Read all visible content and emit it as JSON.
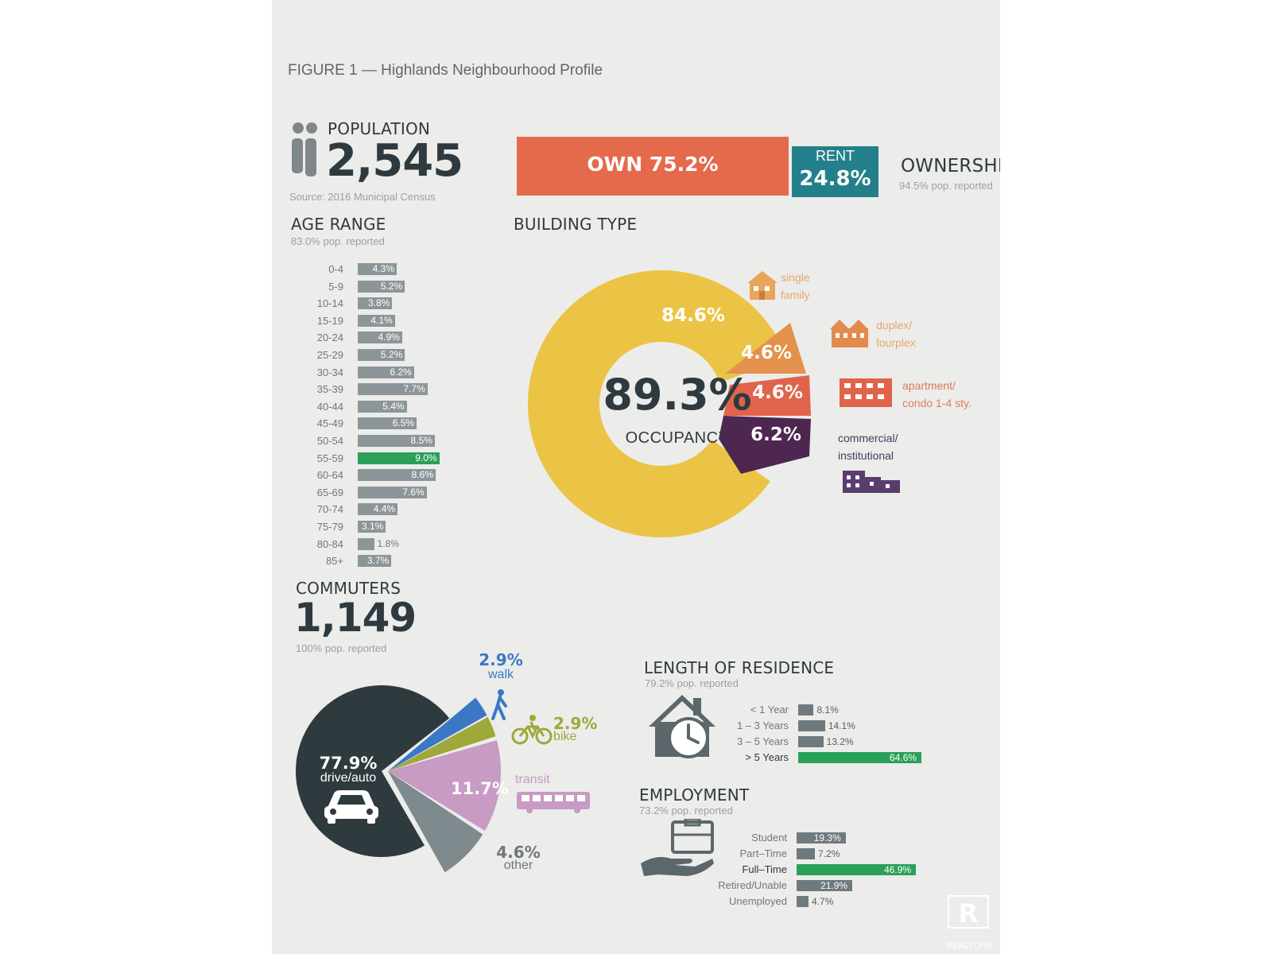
{
  "figure_title": "FIGURE 1 — Highlands Neighbourhood Profile",
  "population": {
    "label": "POPULATION",
    "value": "2,545",
    "source": "Source: 2016 Municipal Census"
  },
  "ownership": {
    "title": "OWNERSHIP",
    "reported": "94.5% pop. reported",
    "own_label": "OWN 75.2%",
    "rent_label": "RENT",
    "rent_value": "24.8%",
    "own_fraction": 0.752,
    "colors": {
      "own": "#e56a4c",
      "rent": "#23808b"
    }
  },
  "age": {
    "title": "AGE RANGE",
    "reported": "83.0% pop. reported",
    "highlight_color": "#2aa05a",
    "bar_color": "#8c9699"
  },
  "building": {
    "title": "BUILDING TYPE",
    "center_value": "89.3%",
    "center_label": "OCCUPANCY",
    "labels": [
      {
        "line1": "single",
        "line2": "family",
        "color": "#e4a86a"
      },
      {
        "line1": "duplex/",
        "line2": "fourplex",
        "color": "#e4a86a"
      },
      {
        "line1": "apartment/",
        "line2": "condo 1-4 sty.",
        "color": "#e07a60"
      },
      {
        "line1": "commercial/",
        "line2": "institutional",
        "color": "#4a3a5c"
      }
    ]
  },
  "commuters": {
    "label": "COMMUTERS",
    "value": "1,149",
    "reported": "100% pop. reported",
    "walk": {
      "pct": "2.9%",
      "name": "walk"
    },
    "bike": {
      "pct": "2.9%",
      "name": "bike"
    },
    "transit": {
      "name": "transit"
    },
    "drive": {
      "pct": "77.9%",
      "name": "drive/auto"
    },
    "transit_pct": "11.7%",
    "other": {
      "pct": "4.6%",
      "name": "other"
    }
  },
  "residence": {
    "title": "LENGTH OF RESIDENCE",
    "reported": "79.2% pop. reported"
  },
  "employment": {
    "title": "EMPLOYMENT",
    "reported": "73.2% pop. reported"
  },
  "watermark": "REALTOR®",
  "chart_data": [
    {
      "type": "bar",
      "title": "AGE RANGE",
      "subtitle": "83.0% pop. reported",
      "orientation": "horizontal",
      "categories": [
        "0-4",
        "5-9",
        "10-14",
        "15-19",
        "20-24",
        "25-29",
        "30-34",
        "35-39",
        "40-44",
        "45-49",
        "50-54",
        "55-59",
        "60-64",
        "65-69",
        "70-74",
        "75-79",
        "80-84",
        "85+"
      ],
      "values": [
        4.3,
        5.2,
        3.8,
        4.1,
        4.9,
        5.2,
        6.2,
        7.7,
        5.4,
        6.5,
        8.5,
        9.0,
        8.6,
        7.6,
        4.4,
        3.1,
        1.8,
        3.7
      ],
      "value_labels": [
        "4.3%",
        "5.2%",
        "3.8%",
        "4.1%",
        "4.9%",
        "5.2%",
        "6.2%",
        "7.7%",
        "5.4%",
        "6.5%",
        "8.5%",
        "9.0%",
        "8.6%",
        "7.6%",
        "4.4%",
        "3.1%",
        "1.8%",
        "3.7%"
      ],
      "highlight": "55-59"
    },
    {
      "type": "bar",
      "title": "OWNERSHIP",
      "subtitle": "94.5% pop. reported",
      "orientation": "stacked",
      "categories": [
        "OWN",
        "RENT"
      ],
      "values": [
        75.2,
        24.8
      ]
    },
    {
      "type": "pie",
      "title": "BUILDING TYPE",
      "categories": [
        "single family",
        "duplex/ fourplex",
        "apartment/ condo 1-4 sty.",
        "commercial/ institutional"
      ],
      "values": [
        84.6,
        4.6,
        4.6,
        6.2
      ],
      "value_labels": [
        "84.6%",
        "4.6%",
        "4.6%",
        "6.2%"
      ],
      "colors": [
        "#ebc445",
        "#e3914c",
        "#e0644b",
        "#4e2750"
      ],
      "center_text": "89.3% OCCUPANCY"
    },
    {
      "type": "pie",
      "title": "COMMUTERS",
      "subtitle": "100% pop. reported",
      "categories": [
        "drive/auto",
        "walk",
        "bike",
        "transit",
        "other"
      ],
      "values": [
        77.9,
        2.9,
        2.9,
        11.7,
        4.6
      ],
      "value_labels": [
        "77.9%",
        "2.9%",
        "2.9%",
        "11.7%",
        "4.6%"
      ],
      "colors": [
        "#2f3a3f",
        "#3a78c6",
        "#9fa83a",
        "#c79bc4",
        "#7e8a8d"
      ]
    },
    {
      "type": "bar",
      "title": "LENGTH OF RESIDENCE",
      "subtitle": "79.2% pop. reported",
      "orientation": "horizontal",
      "categories": [
        "< 1 Year",
        "1 – 3 Years",
        "3 – 5 Years",
        "> 5 Years"
      ],
      "values": [
        8.1,
        14.1,
        13.2,
        64.6
      ],
      "value_labels": [
        "8.1%",
        "14.1%",
        "13.2%",
        "64.6%"
      ],
      "highlight": "> 5 Years"
    },
    {
      "type": "bar",
      "title": "EMPLOYMENT",
      "subtitle": "73.2% pop. reported",
      "orientation": "horizontal",
      "categories": [
        "Student",
        "Part–Time",
        "Full–Time",
        "Retired/Unable",
        "Unemployed"
      ],
      "values": [
        19.3,
        7.2,
        46.9,
        21.9,
        4.7
      ],
      "value_labels": [
        "19.3%",
        "7.2%",
        "46.9%",
        "21.9%",
        "4.7%"
      ],
      "highlight": "Full–Time"
    }
  ]
}
